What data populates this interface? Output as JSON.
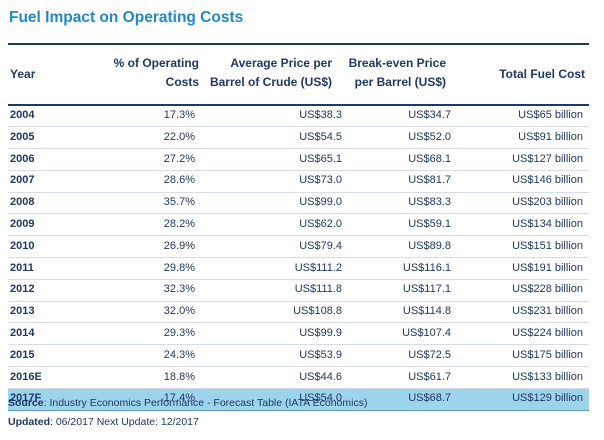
{
  "title": "Fuel Impact on Operating Costs",
  "headers": {
    "year": "Year",
    "pct": [
      "% of Operating",
      "Costs"
    ],
    "avg": [
      "Average Price per",
      "Barrel of Crude (US$)"
    ],
    "be": [
      "Break-even Price",
      "per Barrel (US$)"
    ],
    "tfc": "Total Fuel Cost"
  },
  "rows": [
    {
      "year": "2004",
      "pct": "17.3%",
      "avg": "US$38.3",
      "be": "US$34.7",
      "tfc": "US$65 billion"
    },
    {
      "year": "2005",
      "pct": "22.0%",
      "avg": "US$54.5",
      "be": "US$52.0",
      "tfc": "US$91 billion"
    },
    {
      "year": "2006",
      "pct": "27.2%",
      "avg": "US$65.1",
      "be": "US$68.1",
      "tfc": "US$127 billion"
    },
    {
      "year": "2007",
      "pct": "28.6%",
      "avg": "US$73.0",
      "be": "US$81.7",
      "tfc": "US$146 billion"
    },
    {
      "year": "2008",
      "pct": "35.7%",
      "avg": "US$99.0",
      "be": "US$83.3",
      "tfc": "US$203 billion"
    },
    {
      "year": "2009",
      "pct": "28.2%",
      "avg": "US$62.0",
      "be": "US$59.1",
      "tfc": "US$134 billion"
    },
    {
      "year": "2010",
      "pct": "26.9%",
      "avg": "US$79.4",
      "be": "US$89.8",
      "tfc": "US$151 billion"
    },
    {
      "year": "2011",
      "pct": "29.8%",
      "avg": "US$111.2",
      "be": "US$116.1",
      "tfc": "US$191 billion"
    },
    {
      "year": "2012",
      "pct": "32.3%",
      "avg": "US$111.8",
      "be": "US$117.1",
      "tfc": "US$228 billion"
    },
    {
      "year": "2013",
      "pct": "32.0%",
      "avg": "US$108.8",
      "be": "US$114.8",
      "tfc": "US$231 billion"
    },
    {
      "year": "2014",
      "pct": "29.3%",
      "avg": "US$99.9",
      "be": "US$107.4",
      "tfc": "US$224 billion"
    },
    {
      "year": "2015",
      "pct": "24.3%",
      "avg": "US$53.9",
      "be": "US$72.5",
      "tfc": "US$175 billion"
    },
    {
      "year": "2016E",
      "pct": "18.8%",
      "avg": "US$44.6",
      "be": "US$61.7",
      "tfc": "US$133 billion"
    },
    {
      "year": "2017F",
      "pct": "17.4%",
      "avg": "US$54.0",
      "be": "US$68.7",
      "tfc": "US$129 billion",
      "highlight": true
    }
  ],
  "footer": {
    "source_label": "Source",
    "source_text": ": Industry Economics Performance - Forecast Table (IATA Economics)",
    "updated_label": "Updated",
    "updated_text": ": 06/2017 Next Update: 12/2017"
  },
  "colors": {
    "title": "#1f8ac7",
    "text": "#1f3864",
    "highlight_row": "#9ed3ec"
  }
}
